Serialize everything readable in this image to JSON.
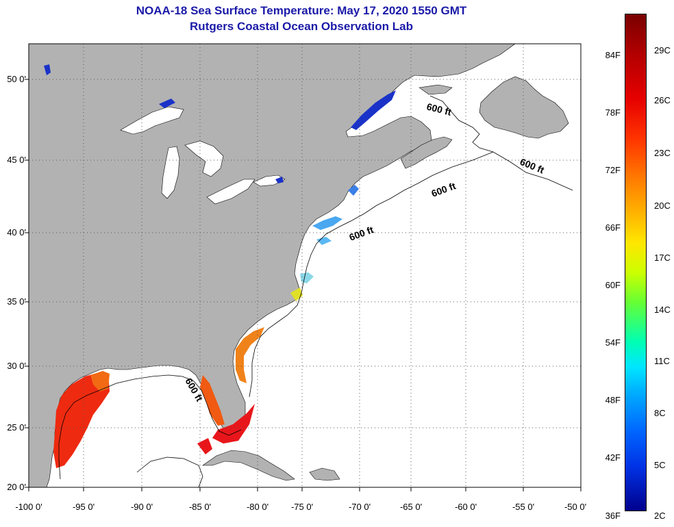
{
  "title": {
    "line1": "NOAA-18 Sea Surface Temperature:  May 17, 2020 1550 GMT",
    "line2": "Rutgers Coastal Ocean Observation Lab"
  },
  "map": {
    "lat_labels": [
      "50 0'",
      "45 0'",
      "40 0'",
      "35 0'",
      "30 0'",
      "25 0'",
      "20 0'"
    ],
    "lon_labels": [
      "-100 0'",
      "-95 0'",
      "-90 0'",
      "-85 0'",
      "-80 0'",
      "-75 0'",
      "-70 0'",
      "-65 0'",
      "-60 0'",
      "-55 0'",
      "-50 0'"
    ],
    "isobath_labels": [
      "600 ft",
      "600 ft",
      "600 ft",
      "600 ft",
      "600 ft"
    ],
    "colors": {
      "land": "#b2b2b2",
      "ocean": "#ffffff",
      "grid": "#555555"
    }
  },
  "colorbar": {
    "fahrenheit": [
      "84F",
      "78F",
      "72F",
      "66F",
      "60F",
      "54F",
      "48F",
      "42F",
      "36F"
    ],
    "celsius": [
      "29C",
      "26C",
      "23C",
      "20C",
      "17C",
      "14C",
      "11C",
      "8C",
      "5C",
      "2C"
    ]
  }
}
